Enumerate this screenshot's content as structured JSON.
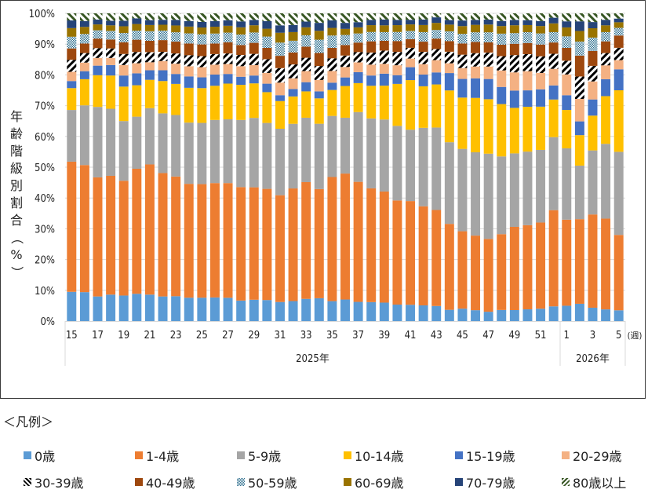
{
  "chart_data": {
    "type": "bar",
    "stacked": true,
    "percent": true,
    "title": "",
    "xlabel": "",
    "ylabel": "年齢階級別割合（%）",
    "x_unit_label": "(週)",
    "ylim": [
      0,
      100
    ],
    "yticks": [
      "0%",
      "10%",
      "20%",
      "30%",
      "40%",
      "50%",
      "60%",
      "70%",
      "80%",
      "90%",
      "100%"
    ],
    "grid": true,
    "legend_title": "＜凡例＞",
    "legend_position": "bottom",
    "year_groups": [
      {
        "label": "2025年",
        "count": 38
      },
      {
        "label": "2026年",
        "count": 5
      }
    ],
    "categories": [
      "15",
      "16",
      "17",
      "18",
      "19",
      "20",
      "21",
      "22",
      "23",
      "24",
      "25",
      "26",
      "27",
      "28",
      "29",
      "30",
      "31",
      "32",
      "33",
      "34",
      "35",
      "36",
      "37",
      "38",
      "39",
      "40",
      "41",
      "42",
      "43",
      "44",
      "45",
      "46",
      "47",
      "48",
      "49",
      "50",
      "51",
      "52",
      "1",
      "2",
      "3",
      "4",
      "5"
    ],
    "tick_labels": [
      "15",
      "",
      "17",
      "",
      "19",
      "",
      "21",
      "",
      "23",
      "",
      "25",
      "",
      "27",
      "",
      "29",
      "",
      "31",
      "",
      "33",
      "",
      "35",
      "",
      "37",
      "",
      "39",
      "",
      "41",
      "",
      "43",
      "",
      "45",
      "",
      "47",
      "",
      "49",
      "",
      "51",
      "",
      "1",
      "",
      "3",
      "",
      "5"
    ],
    "series": [
      {
        "name": "0歳",
        "color": "#5b9bd5",
        "pattern": "solid",
        "values": [
          9.5,
          9.4,
          8.0,
          8.6,
          8.3,
          8.7,
          8.6,
          8.0,
          8.0,
          7.6,
          7.6,
          7.6,
          7.5,
          6.6,
          6.8,
          6.7,
          6.2,
          6.5,
          7.0,
          7.2,
          6.3,
          6.8,
          6.3,
          6.1,
          6.0,
          5.3,
          5.3,
          5.1,
          4.9,
          3.7,
          4.0,
          3.5,
          3.0,
          3.5,
          3.5,
          3.8,
          4.0,
          4.7,
          4.8,
          5.4,
          4.3,
          3.8,
          3.5
        ]
      },
      {
        "name": "1-4歳",
        "color": "#ed7d31",
        "pattern": "solid",
        "values": [
          42.3,
          41.3,
          38.7,
          38.6,
          37.3,
          39.8,
          42.3,
          40.1,
          38.5,
          37.0,
          36.9,
          36.8,
          36.9,
          36.5,
          35.8,
          35.4,
          34.7,
          36.6,
          36.8,
          34.4,
          39.2,
          39.7,
          39.4,
          36.6,
          36.1,
          33.5,
          33.7,
          32.2,
          31.2,
          28.2,
          24.9,
          24.0,
          23.4,
          23.9,
          26.5,
          27.2,
          27.9,
          30.7,
          26.9,
          26.4,
          30.0,
          29.5,
          24.5
        ]
      },
      {
        "name": "5-9歳",
        "color": "#a5a5a5",
        "pattern": "solid",
        "values": [
          16.8,
          19.4,
          22.9,
          21.8,
          19.4,
          16.6,
          18.3,
          19.4,
          19.8,
          19.9,
          19.9,
          20.3,
          20.5,
          21.6,
          22.1,
          21.0,
          21.6,
          21.0,
          20.3,
          20.6,
          19.3,
          17.6,
          22.9,
          22.5,
          23.4,
          24.0,
          23.2,
          25.5,
          26.8,
          26.8,
          26.5,
          26.8,
          27.4,
          24.5,
          23.4,
          23.8,
          23.5,
          23.3,
          22.3,
          16.7,
          20.6,
          24.3,
          27.0
        ]
      },
      {
        "name": "10-14歳",
        "color": "#ffc000",
        "pattern": "solid",
        "values": [
          7.1,
          8.5,
          10.3,
          10.8,
          11.2,
          10.0,
          9.2,
          10.5,
          10.0,
          11.3,
          11.3,
          11.0,
          11.5,
          11.3,
          11.0,
          9.8,
          9.0,
          8.9,
          8.3,
          8.0,
          8.2,
          10.0,
          9.5,
          10.5,
          11.0,
          13.5,
          16.1,
          13.5,
          14.0,
          17.0,
          16.5,
          17.5,
          17.5,
          16.5,
          14.5,
          14.5,
          14.0,
          12.0,
          12.0,
          9.5,
          11.2,
          15.5,
          20.0
        ]
      },
      {
        "name": "15-19歳",
        "color": "#4472c4",
        "pattern": "solid",
        "values": [
          2.3,
          2.6,
          3.1,
          3.4,
          3.6,
          3.8,
          3.1,
          3.5,
          3.2,
          3.7,
          3.5,
          3.6,
          3.1,
          2.6,
          2.5,
          2.7,
          1.9,
          2.4,
          2.9,
          2.2,
          2.3,
          2.7,
          3.6,
          3.3,
          3.9,
          2.8,
          4.2,
          3.8,
          3.9,
          5.7,
          6.0,
          6.3,
          6.5,
          5.4,
          5.5,
          5.3,
          5.6,
          4.5,
          4.6,
          4.3,
          5.2,
          5.5,
          6.8
        ]
      },
      {
        "name": "20-29歳",
        "color": "#f4b183",
        "pattern": "solid",
        "values": [
          3.0,
          2.8,
          2.5,
          2.3,
          3.4,
          3.2,
          2.6,
          3.0,
          3.3,
          3.3,
          3.3,
          3.2,
          3.2,
          3.4,
          3.3,
          3.4,
          4.1,
          3.5,
          3.5,
          3.6,
          3.7,
          3.3,
          3.2,
          3.5,
          3.2,
          3.2,
          2.8,
          3.4,
          4.0,
          3.2,
          3.5,
          3.8,
          4.0,
          5.2,
          5.8,
          6.2,
          5.3,
          5.3,
          6.5,
          7.0,
          5.8,
          4.5,
          3.0
        ]
      },
      {
        "name": "30-39歳",
        "color": "#000000",
        "pattern": "stripes",
        "values": [
          3.9,
          3.1,
          3.2,
          3.1,
          3.6,
          3.6,
          3.3,
          3.0,
          3.3,
          3.6,
          3.6,
          3.4,
          3.4,
          3.6,
          3.6,
          4.4,
          4.7,
          4.5,
          4.2,
          4.4,
          4.0,
          3.6,
          3.4,
          3.9,
          4.3,
          4.3,
          3.5,
          4.0,
          3.6,
          3.8,
          4.3,
          4.3,
          4.5,
          4.5,
          5.5,
          5.5,
          5.4,
          4.8,
          4.3,
          7.0,
          5.0,
          4.0,
          4.0
        ]
      },
      {
        "name": "40-49歳",
        "color": "#9e480e",
        "pattern": "solid",
        "values": [
          3.7,
          3.1,
          3.1,
          2.9,
          3.8,
          3.9,
          3.7,
          3.8,
          3.8,
          3.8,
          3.8,
          3.4,
          3.6,
          3.2,
          3.5,
          3.6,
          4.0,
          3.9,
          3.5,
          4.1,
          3.3,
          3.3,
          3.1,
          3.6,
          3.2,
          3.5,
          2.8,
          3.3,
          3.4,
          3.5,
          3.6,
          3.6,
          3.3,
          3.6,
          3.6,
          3.6,
          3.8,
          3.6,
          4.0,
          6.5,
          4.8,
          3.8,
          4.0
        ]
      },
      {
        "name": "50-59歳",
        "color": "#1f5f7a",
        "pattern": "checker",
        "values": [
          3.8,
          3.1,
          2.7,
          2.8,
          3.0,
          2.9,
          3.1,
          3.1,
          3.0,
          3.3,
          3.3,
          3.2,
          3.1,
          3.4,
          3.3,
          3.6,
          4.3,
          3.8,
          3.6,
          4.2,
          3.9,
          3.2,
          3.0,
          3.0,
          2.8,
          2.9,
          2.7,
          3.1,
          2.8,
          3.2,
          3.1,
          3.1,
          3.2,
          3.5,
          3.4,
          3.5,
          3.6,
          3.3,
          3.6,
          4.4,
          4.3,
          3.0,
          2.5
        ]
      },
      {
        "name": "60-69歳",
        "color": "#997300",
        "pattern": "solid",
        "values": [
          2.8,
          2.3,
          1.9,
          1.8,
          2.2,
          2.1,
          2.0,
          1.9,
          2.2,
          2.2,
          2.2,
          2.2,
          2.2,
          2.3,
          2.3,
          2.5,
          3.2,
          2.8,
          2.5,
          2.8,
          2.4,
          1.9,
          2.0,
          2.2,
          2.2,
          2.2,
          2.1,
          2.3,
          2.3,
          2.2,
          2.5,
          2.4,
          2.5,
          2.4,
          2.5,
          2.3,
          2.4,
          2.8,
          2.8,
          3.3,
          3.0,
          2.2,
          1.8
        ]
      },
      {
        "name": "70-79歳",
        "color": "#264478",
        "pattern": "solid",
        "values": [
          2.5,
          1.9,
          1.6,
          1.5,
          1.8,
          1.8,
          1.6,
          1.6,
          1.8,
          1.8,
          1.8,
          1.8,
          1.8,
          1.9,
          1.7,
          2.4,
          2.4,
          2.3,
          1.8,
          2.5,
          2.4,
          1.9,
          1.7,
          1.7,
          1.9,
          1.7,
          1.5,
          1.8,
          1.8,
          1.5,
          1.8,
          1.6,
          1.6,
          1.6,
          1.7,
          1.6,
          1.6,
          1.8,
          1.9,
          3.0,
          2.0,
          1.8,
          1.2
        ]
      },
      {
        "name": "80歳以上",
        "color": "#375623",
        "pattern": "stripes",
        "values": [
          2.3,
          2.5,
          2.0,
          2.4,
          2.4,
          1.6,
          2.2,
          2.1,
          2.1,
          2.5,
          2.8,
          2.5,
          2.2,
          2.6,
          2.1,
          2.5,
          3.9,
          3.8,
          2.6,
          3.0,
          2.2,
          3.0,
          2.9,
          2.1,
          2.0,
          2.1,
          2.1,
          2.0,
          1.3,
          2.2,
          2.3,
          2.1,
          2.0,
          2.4,
          2.1,
          2.2,
          2.5,
          1.4,
          2.5,
          2.5,
          2.8,
          2.1,
          1.7
        ]
      }
    ]
  }
}
